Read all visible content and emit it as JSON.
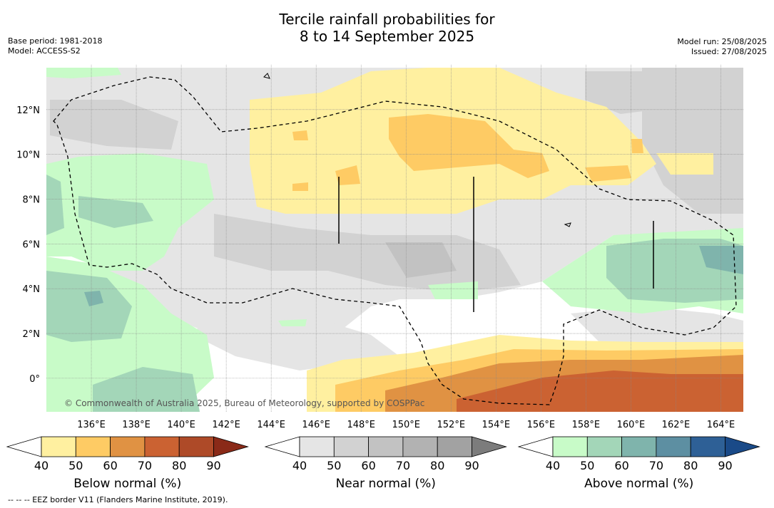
{
  "title_line1": "Tercile rainfall probabilities for",
  "title_line2": "8 to 14 September 2025",
  "base_period": "Base period: 1981-2018",
  "model": "Model: ACCESS-S2",
  "model_run": "Model run: 25/08/2025",
  "issued": "Issued: 27/08/2025",
  "copyright": "© Commonwealth of Australia 2025, Bureau of Meteorology, supported by COSPPac",
  "footer": "-- -- -- EEZ border V11 (Flanders Marine Institute, 2019).",
  "map": {
    "lon_ticks": [
      "136°E",
      "138°E",
      "140°E",
      "142°E",
      "144°E",
      "146°E",
      "148°E",
      "150°E",
      "152°E",
      "154°E",
      "156°E",
      "158°E",
      "160°E",
      "162°E",
      "164°E"
    ],
    "lon_values": [
      136,
      138,
      140,
      142,
      144,
      146,
      148,
      150,
      152,
      154,
      156,
      158,
      160,
      162,
      164
    ],
    "lat_ticks": [
      "12°N",
      "10°N",
      "8°N",
      "6°N",
      "4°N",
      "2°N",
      "0°"
    ],
    "lat_values": [
      12,
      10,
      8,
      6,
      4,
      2,
      0
    ],
    "lon_range": [
      134.0,
      165.0
    ],
    "lat_range": [
      -1.5,
      14.0
    ],
    "grid": true
  },
  "colorbars": [
    {
      "title": "Below normal (%)",
      "labels": [
        "40",
        "50",
        "60",
        "70",
        "80",
        "90"
      ],
      "colors": [
        "#ffffff",
        "#fff0a0",
        "#fecb64",
        "#e09243",
        "#cb6232",
        "#ae4a28",
        "#8a2a18"
      ]
    },
    {
      "title": "Near normal (%)",
      "labels": [
        "40",
        "50",
        "60",
        "70",
        "80",
        "90"
      ],
      "colors": [
        "#ffffff",
        "#e5e5e5",
        "#d2d2d2",
        "#c2c2c2",
        "#b2b2b2",
        "#a2a2a2",
        "#7c7c7c"
      ]
    },
    {
      "title": "Above normal (%)",
      "labels": [
        "40",
        "50",
        "60",
        "70",
        "80",
        "90"
      ],
      "colors": [
        "#ffffff",
        "#c8fbc8",
        "#a3d6b8",
        "#7fb4ac",
        "#5d8fa2",
        "#2e6096",
        "#1a4a88"
      ]
    }
  ]
}
